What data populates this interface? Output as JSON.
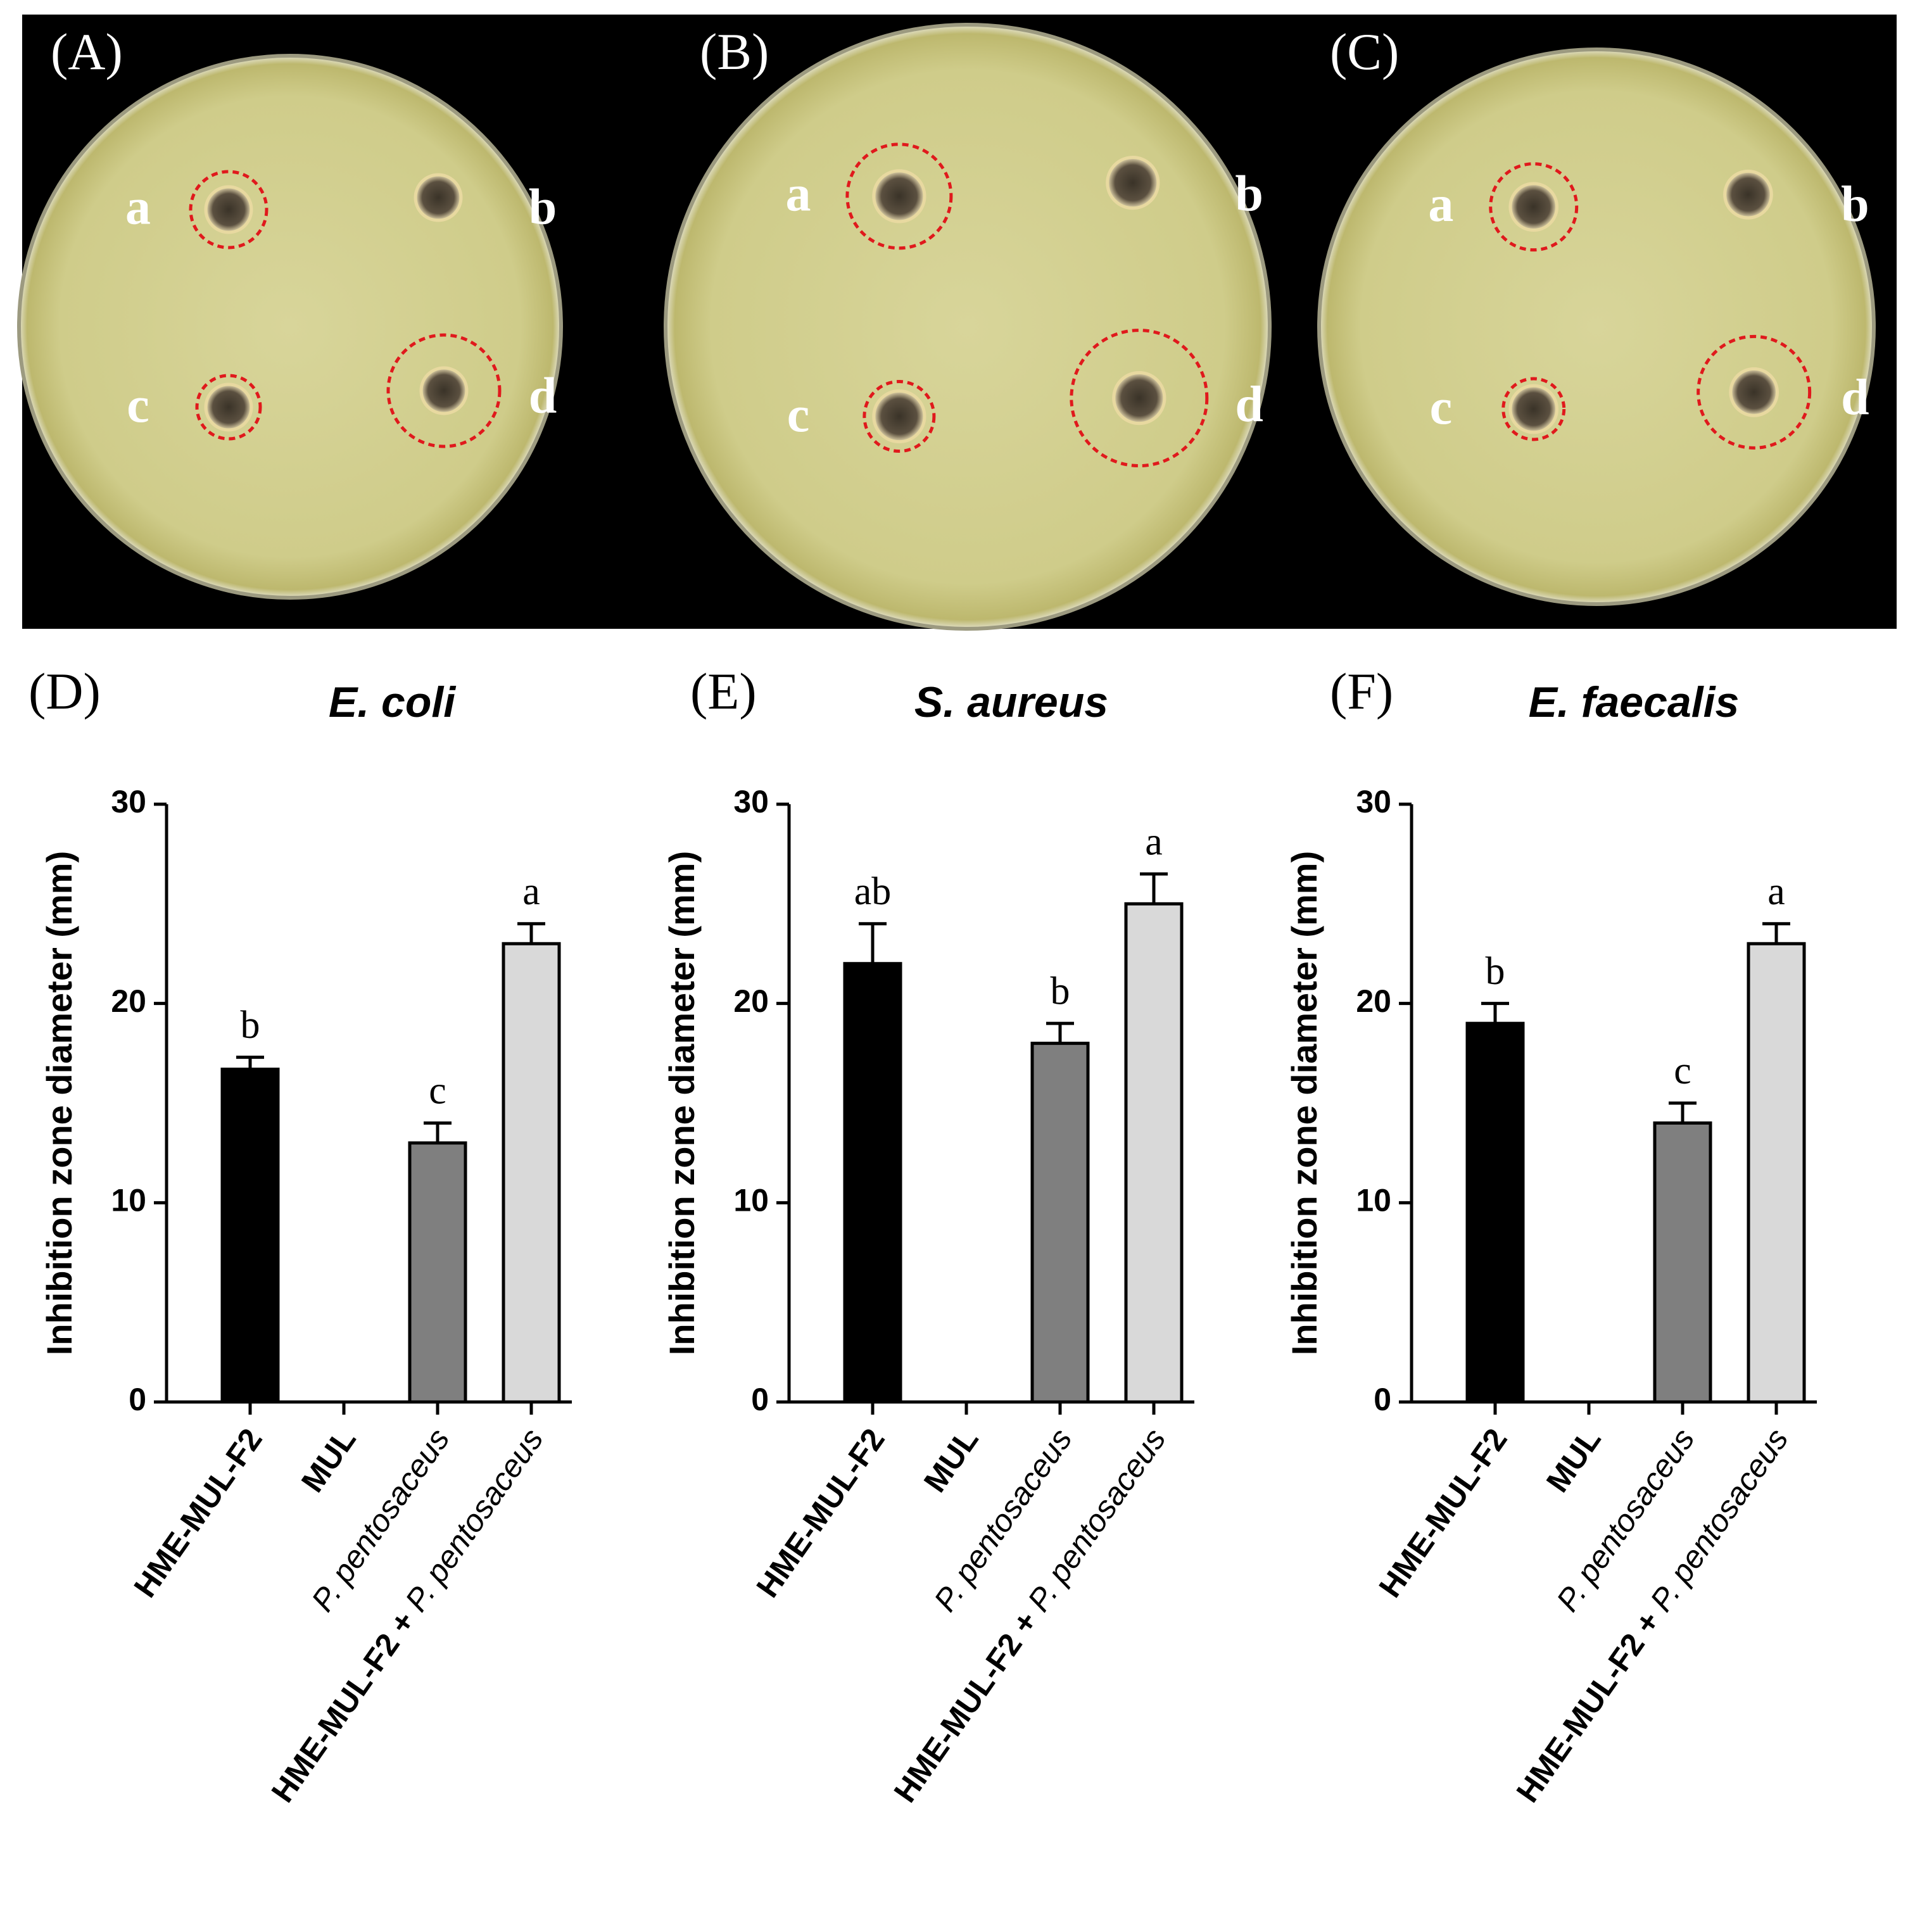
{
  "photos": [
    {
      "label": "(A)",
      "wells": [
        "a",
        "b",
        "c",
        "d"
      ]
    },
    {
      "label": "(B)",
      "wells": [
        "a",
        "b",
        "c",
        "d"
      ]
    },
    {
      "label": "(C)",
      "wells": [
        "a",
        "b",
        "c",
        "d"
      ]
    }
  ],
  "chart_data": [
    {
      "type": "bar",
      "panel": "(D)",
      "title": "E. coli",
      "y_label": "Inhibition zone diameter (mm)",
      "categories": [
        "HME-MUL-F2",
        "MUL",
        "P. pentosaceus",
        "HME-MUL-F2 + P. pentosaceus"
      ],
      "values": [
        16.7,
        0,
        13,
        23
      ],
      "errors": [
        0.6,
        0,
        1,
        1
      ],
      "significance_letters": [
        "b",
        null,
        "c",
        "a"
      ],
      "colors": [
        "#000000",
        "#ffffff",
        "#7f7f7f",
        "#d9d9d9"
      ],
      "ylim": [
        0,
        30
      ],
      "yticks": [
        0,
        10,
        20,
        30
      ],
      "grid": false
    },
    {
      "type": "bar",
      "panel": "(E)",
      "title": "S. aureus",
      "y_label": "Inhibition zone diameter (mm)",
      "categories": [
        "HME-MUL-F2",
        "MUL",
        "P. pentosaceus",
        "HME-MUL-F2 + P. pentosaceus"
      ],
      "values": [
        22,
        0,
        18,
        25
      ],
      "errors": [
        2,
        0,
        1,
        1.5
      ],
      "significance_letters": [
        "ab",
        null,
        "b",
        "a"
      ],
      "colors": [
        "#000000",
        "#ffffff",
        "#7f7f7f",
        "#d9d9d9"
      ],
      "ylim": [
        0,
        30
      ],
      "yticks": [
        0,
        10,
        20,
        30
      ],
      "grid": false
    },
    {
      "type": "bar",
      "panel": "(F)",
      "title": "E. faecalis",
      "y_label": "Inhibition zone diameter (mm)",
      "categories": [
        "HME-MUL-F2",
        "MUL",
        "P. pentosaceus",
        "HME-MUL-F2 + P. pentosaceus"
      ],
      "values": [
        19,
        0,
        14,
        23
      ],
      "errors": [
        1,
        0,
        1,
        1
      ],
      "significance_letters": [
        "b",
        null,
        "c",
        "a"
      ],
      "colors": [
        "#000000",
        "#ffffff",
        "#7f7f7f",
        "#d9d9d9"
      ],
      "ylim": [
        0,
        30
      ],
      "yticks": [
        0,
        10,
        20,
        30
      ],
      "grid": false
    }
  ]
}
